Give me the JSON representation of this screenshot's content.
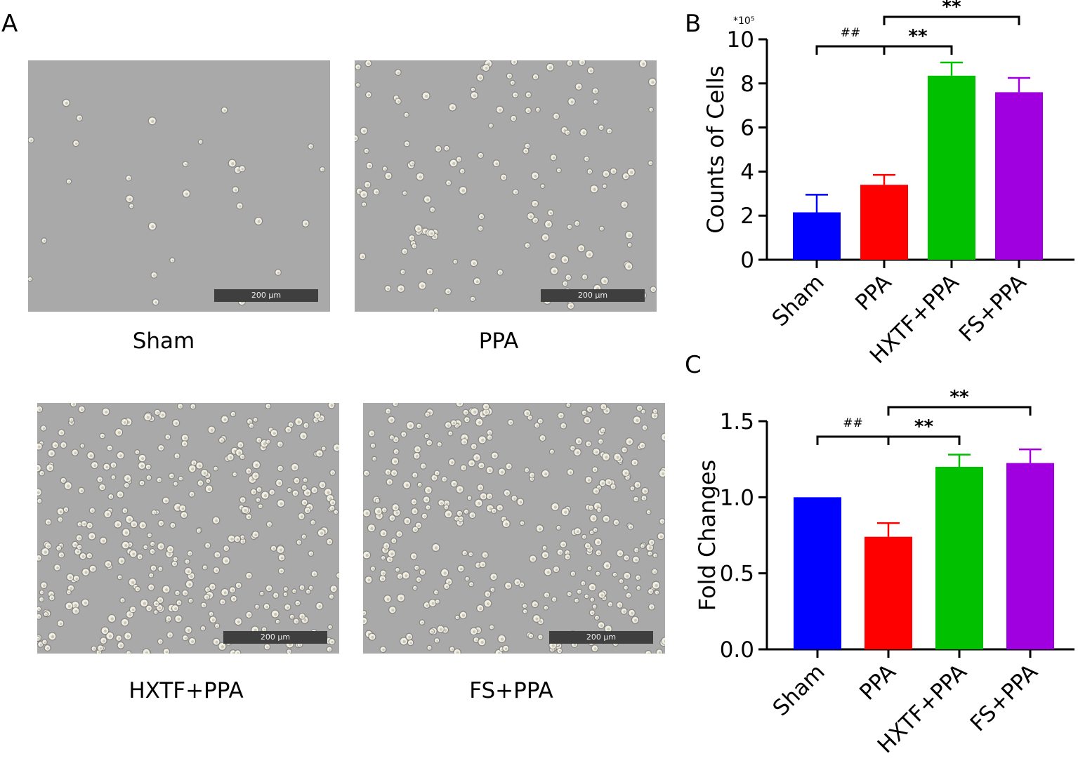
{
  "panel_labels": {
    "a": "A",
    "b": "B",
    "c": "C"
  },
  "micrographs": [
    {
      "caption": "Sham",
      "scale_label": "200 μm",
      "cell_count": 30
    },
    {
      "caption": "PPA",
      "scale_label": "200 μm",
      "cell_count": 150
    },
    {
      "caption": "HXTF+PPA",
      "scale_label": "200 μm",
      "cell_count": 380
    },
    {
      "caption": "FS+PPA",
      "scale_label": "200 μm",
      "cell_count": 360
    }
  ],
  "chart_data": [
    {
      "type": "bar",
      "panel": "B",
      "categories": [
        "Sham",
        "PPA",
        "HXTF+PPA",
        "FS+PPA"
      ],
      "values": [
        2.15,
        3.4,
        8.35,
        7.6
      ],
      "errors": [
        0.8,
        0.45,
        0.6,
        0.65
      ],
      "colors": [
        "#0000ff",
        "#ff0000",
        "#00c000",
        "#a000e0"
      ],
      "ylabel": "Counts of Cells",
      "multiplier_label": "*10⁵",
      "ylim": [
        0,
        10
      ],
      "yticks": [
        0,
        2,
        4,
        6,
        8,
        10
      ],
      "ytick_labels": [
        "0",
        "2",
        "4",
        "6",
        "8",
        "10"
      ],
      "significance": [
        {
          "from": "Sham",
          "to": "PPA",
          "label": "##"
        },
        {
          "from": "PPA",
          "to": "HXTF+PPA",
          "label": "**"
        },
        {
          "from": "PPA",
          "to": "FS+PPA",
          "label": "**"
        }
      ]
    },
    {
      "type": "bar",
      "panel": "C",
      "categories": [
        "Sham",
        "PPA",
        "HXTF+PPA",
        "FS+PPA"
      ],
      "values": [
        1.0,
        0.74,
        1.2,
        1.225
      ],
      "errors": [
        0.0,
        0.09,
        0.08,
        0.09
      ],
      "colors": [
        "#0000ff",
        "#ff0000",
        "#00c000",
        "#a000e0"
      ],
      "ylabel": "Fold Changes",
      "ylim": [
        0,
        1.5
      ],
      "yticks": [
        0,
        0.5,
        1.0,
        1.5
      ],
      "ytick_labels": [
        "0.0",
        "0.5",
        "1.0",
        "1.5"
      ],
      "significance": [
        {
          "from": "Sham",
          "to": "PPA",
          "label": "##"
        },
        {
          "from": "PPA",
          "to": "HXTF+PPA",
          "label": "**"
        },
        {
          "from": "PPA",
          "to": "FS+PPA",
          "label": "**"
        }
      ]
    }
  ]
}
